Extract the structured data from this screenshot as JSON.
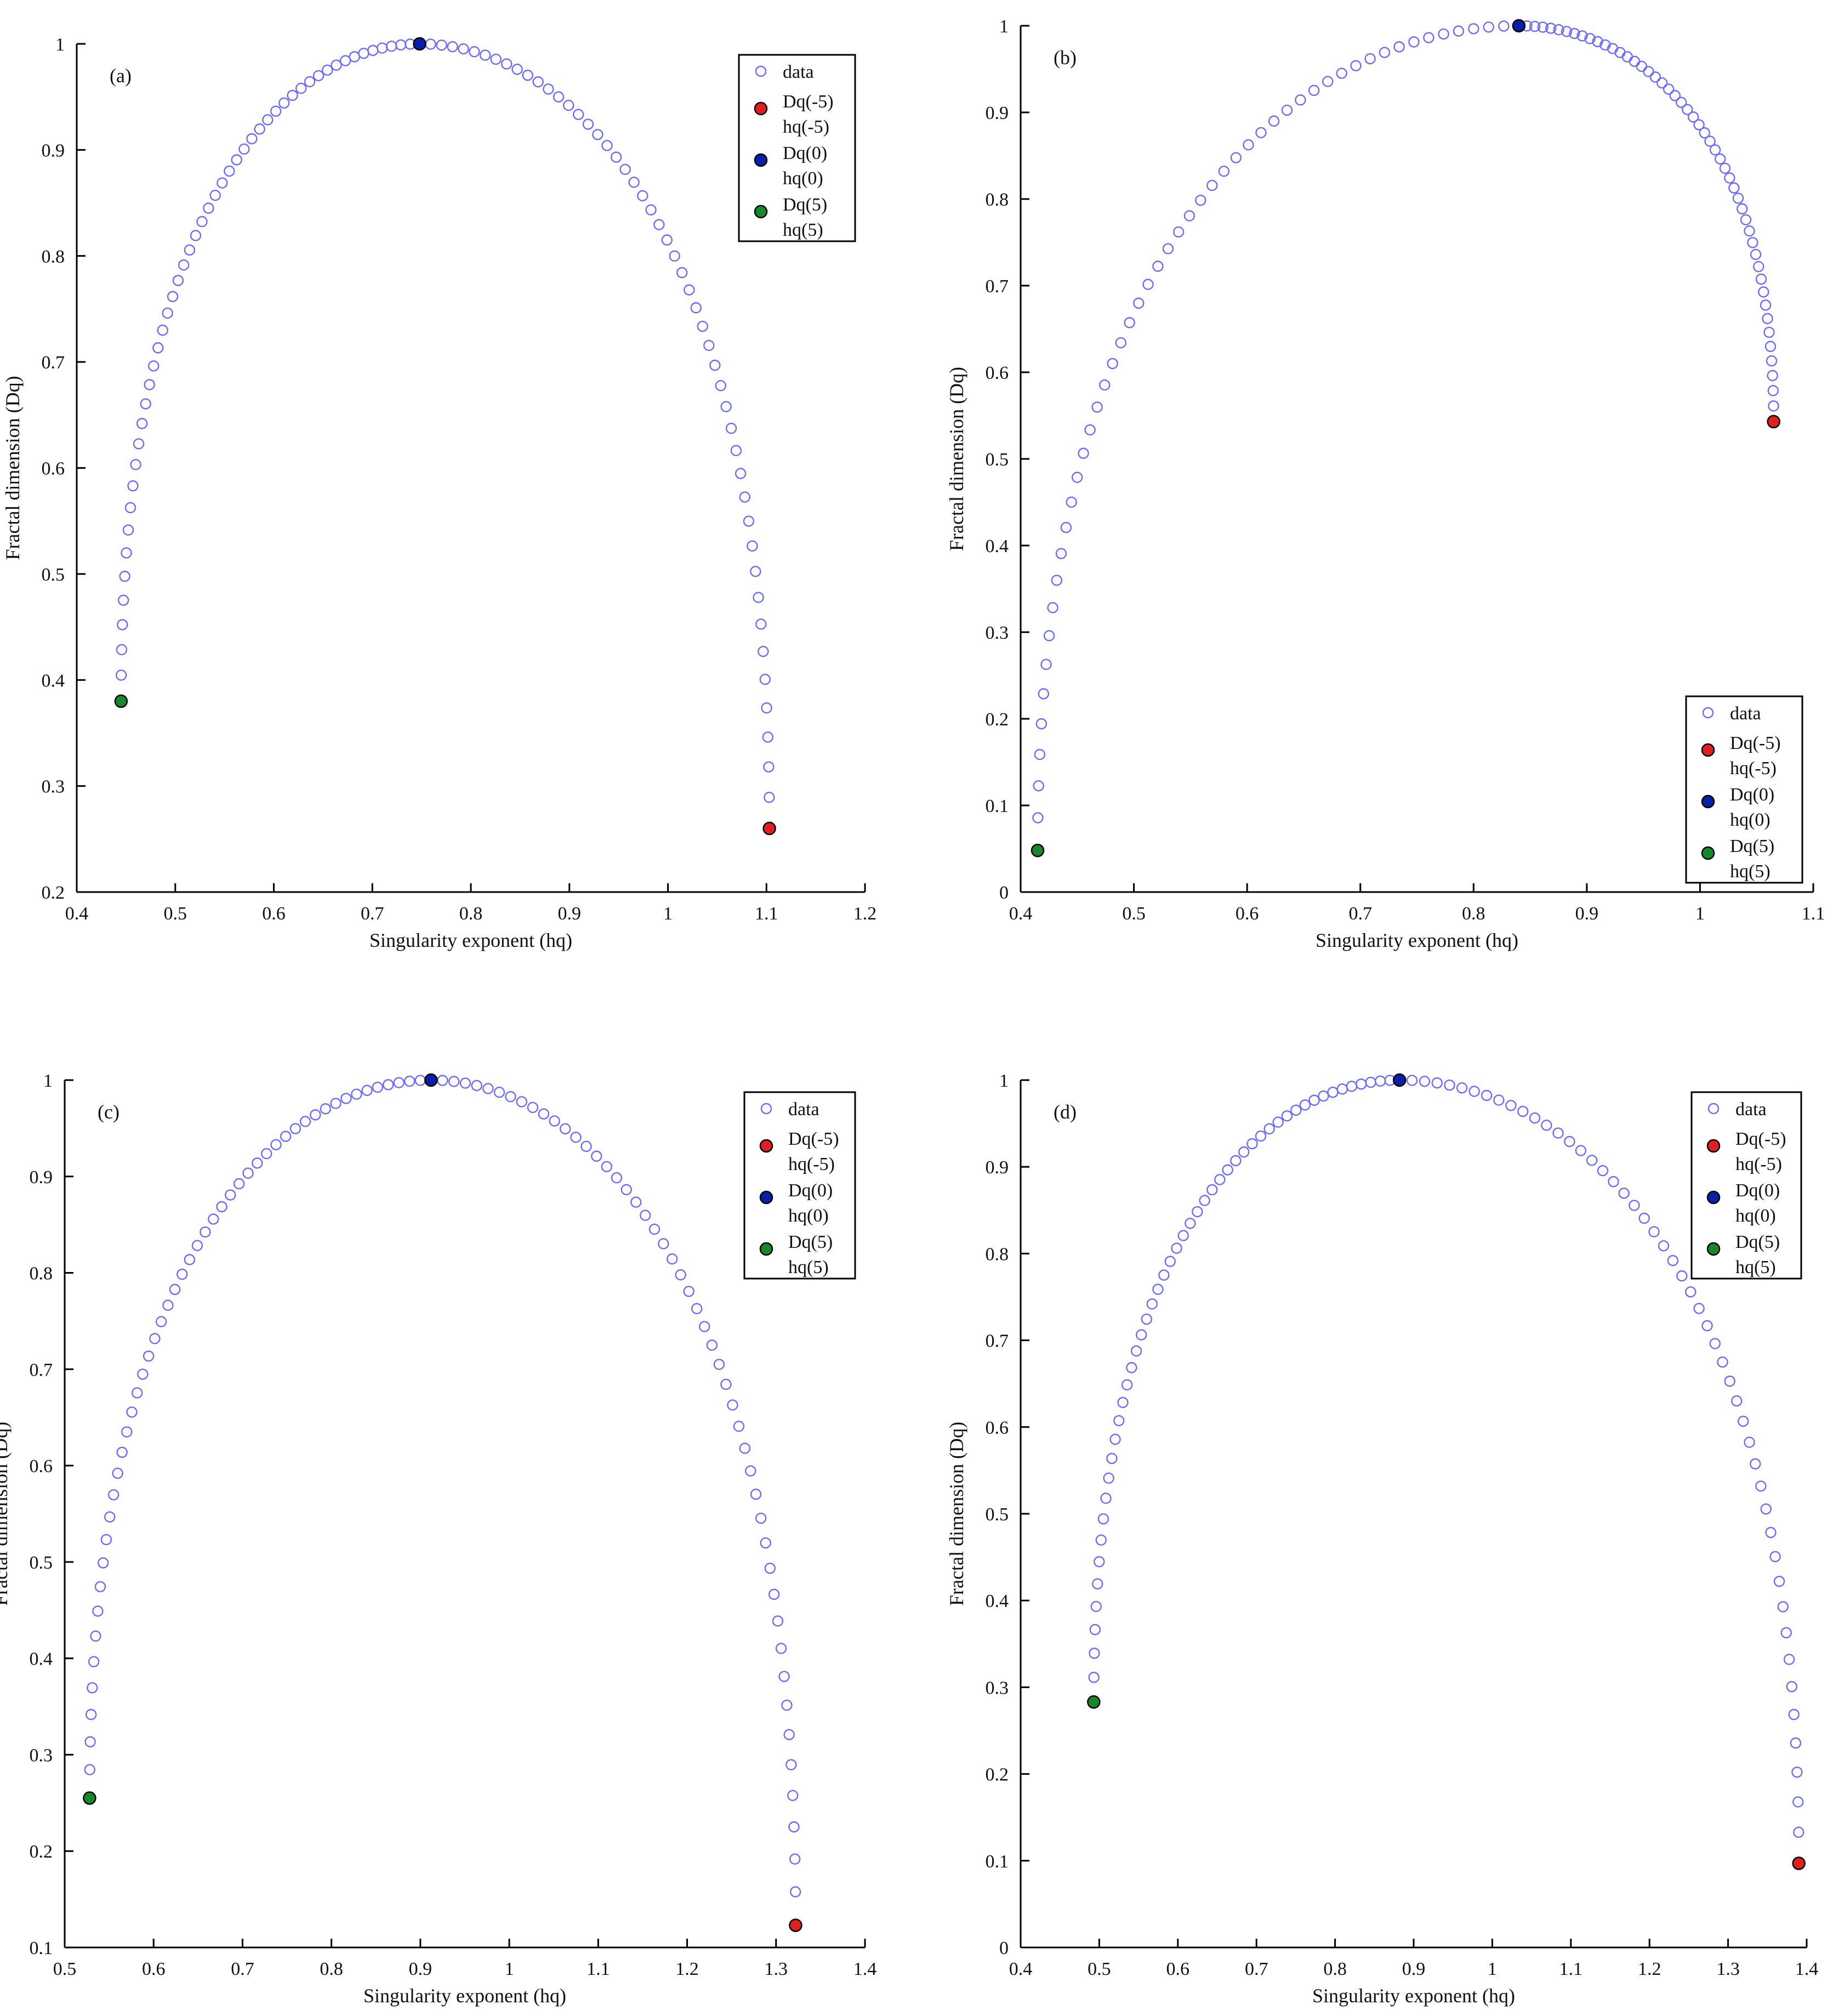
{
  "legend_labels": {
    "data": "data",
    "neg5": [
      "Dq(-5)",
      "hq(-5)"
    ],
    "zero": [
      "Dq(0)",
      "hq(0)"
    ],
    "pos5": [
      "Dq(5)",
      "hq(5)"
    ]
  },
  "colors": {
    "data_marker": "#6b6bff",
    "neg5_marker": "#e02020",
    "zero_marker": "#0a1fa8",
    "pos5_marker": "#16882a"
  },
  "chart_data": [
    {
      "type": "scatter",
      "panel_label": "(a)",
      "xlabel": "Singularity exponent (hq)",
      "ylabel": "Fractal dimension (Dq)",
      "xlim": [
        0.4,
        1.2
      ],
      "ylim": [
        0.2,
        1.0
      ],
      "xticks": [
        0.4,
        0.5,
        0.6,
        0.7,
        0.8,
        0.9,
        1,
        1.1,
        1.2
      ],
      "yticks": [
        0.2,
        0.3,
        0.4,
        0.5,
        0.6,
        0.7,
        0.8,
        0.9,
        1
      ],
      "legend_position": "top-right",
      "curve": {
        "h_min": 0.445,
        "d_at_min": 0.38,
        "h_peak": 0.748,
        "d_peak": 1.0,
        "h_max": 1.103,
        "d_at_max": 0.26,
        "n_points": 101
      },
      "markers": {
        "neg5": [
          1.103,
          0.26
        ],
        "zero": [
          0.748,
          1.0
        ],
        "pos5": [
          0.445,
          0.38
        ]
      }
    },
    {
      "type": "scatter",
      "panel_label": "(b)",
      "xlabel": "Singularity exponent (hq)",
      "ylabel": "Fractal dimension (Dq)",
      "xlim": [
        0.4,
        1.1
      ],
      "ylim": [
        0,
        1.0
      ],
      "xticks": [
        0.4,
        0.5,
        0.6,
        0.7,
        0.8,
        0.9,
        1,
        1.1
      ],
      "yticks": [
        0,
        0.1,
        0.2,
        0.3,
        0.4,
        0.5,
        0.6,
        0.7,
        0.8,
        0.9,
        1
      ],
      "legend_position": "bottom-right",
      "curve": {
        "h_min": 0.415,
        "d_at_min": 0.048,
        "h_peak": 0.84,
        "d_peak": 1.0,
        "h_max": 1.065,
        "d_at_max": 0.543,
        "n_points": 101
      },
      "markers": {
        "neg5": [
          1.065,
          0.543
        ],
        "zero": [
          0.84,
          1.0
        ],
        "pos5": [
          0.415,
          0.048
        ]
      }
    },
    {
      "type": "scatter",
      "panel_label": "(c)",
      "xlabel": "Singularity exponent (hq)",
      "ylabel": "Fractal dimension (Dq)",
      "xlim": [
        0.5,
        1.4
      ],
      "ylim": [
        0.1,
        1.0
      ],
      "xticks": [
        0.5,
        0.6,
        0.7,
        0.8,
        0.9,
        1,
        1.1,
        1.2,
        1.3,
        1.4
      ],
      "yticks": [
        0.1,
        0.2,
        0.3,
        0.4,
        0.5,
        0.6,
        0.7,
        0.8,
        0.9,
        1
      ],
      "legend_position": "top-right",
      "curve": {
        "h_min": 0.528,
        "d_at_min": 0.255,
        "h_peak": 0.912,
        "d_peak": 1.0,
        "h_max": 1.322,
        "d_at_max": 0.123,
        "n_points": 101
      },
      "markers": {
        "neg5": [
          1.322,
          0.123
        ],
        "zero": [
          0.912,
          1.0
        ],
        "pos5": [
          0.528,
          0.255
        ]
      }
    },
    {
      "type": "scatter",
      "panel_label": "(d)",
      "xlabel": "Singularity exponent (hq)",
      "ylabel": "Fractal dimension (Dq)",
      "xlim": [
        0.4,
        1.4
      ],
      "ylim": [
        0,
        1.0
      ],
      "xticks": [
        0.4,
        0.5,
        0.6,
        0.7,
        0.8,
        0.9,
        1,
        1.1,
        1.2,
        1.3,
        1.4
      ],
      "yticks": [
        0,
        0.1,
        0.2,
        0.3,
        0.4,
        0.5,
        0.6,
        0.7,
        0.8,
        0.9,
        1
      ],
      "legend_position": "top-right",
      "curve": {
        "h_min": 0.493,
        "d_at_min": 0.283,
        "h_peak": 0.882,
        "d_peak": 1.0,
        "h_max": 1.39,
        "d_at_max": 0.097,
        "n_points": 101
      },
      "markers": {
        "neg5": [
          1.39,
          0.097
        ],
        "zero": [
          0.882,
          1.0
        ],
        "pos5": [
          0.493,
          0.283
        ]
      }
    }
  ]
}
